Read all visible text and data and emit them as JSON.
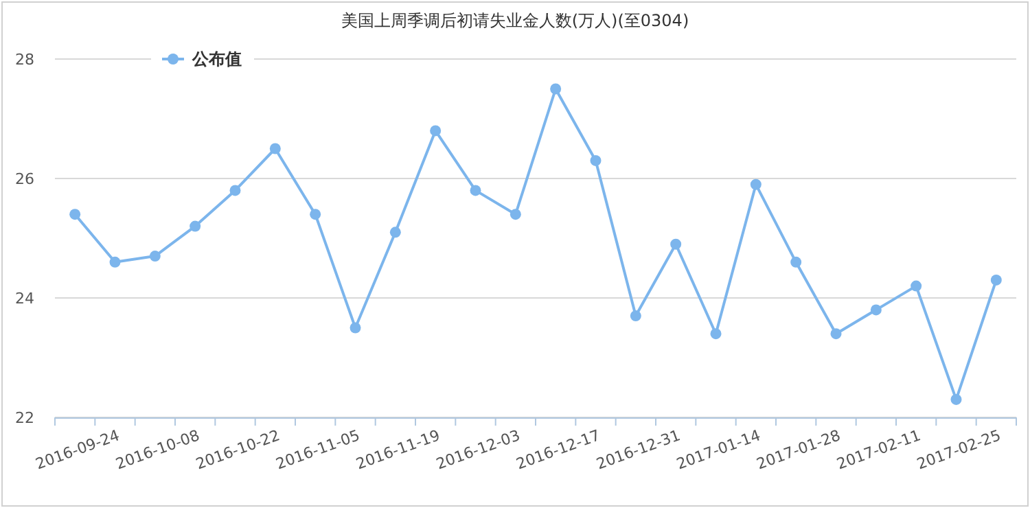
{
  "chart_data": {
    "type": "line",
    "title": "美国上周季调后初请失业金人数(万人)(至0304)",
    "categories": [
      null,
      "2016-09-24",
      null,
      "2016-10-08",
      null,
      "2016-10-22",
      null,
      "2016-11-05",
      null,
      "2016-11-19",
      null,
      "2016-12-03",
      null,
      "2016-12-17",
      null,
      "2016-12-31",
      null,
      "2017-01-14",
      null,
      "2017-01-28",
      null,
      "2017-02-11",
      null,
      "2017-02-25"
    ],
    "series": [
      {
        "name": "公布值",
        "color": "#7cb5ec",
        "values": [
          25.4,
          24.6,
          24.7,
          25.2,
          25.8,
          26.5,
          25.4,
          23.5,
          25.1,
          26.8,
          25.8,
          25.4,
          27.5,
          26.3,
          23.7,
          24.9,
          23.4,
          25.9,
          24.6,
          23.4,
          23.8,
          24.2,
          22.3,
          24.3
        ]
      }
    ],
    "ylim": [
      22,
      28
    ],
    "yticks": [
      22,
      24,
      26,
      28
    ],
    "grid": "y",
    "legend": "top left",
    "marker": "circle",
    "line_style": "solid"
  }
}
